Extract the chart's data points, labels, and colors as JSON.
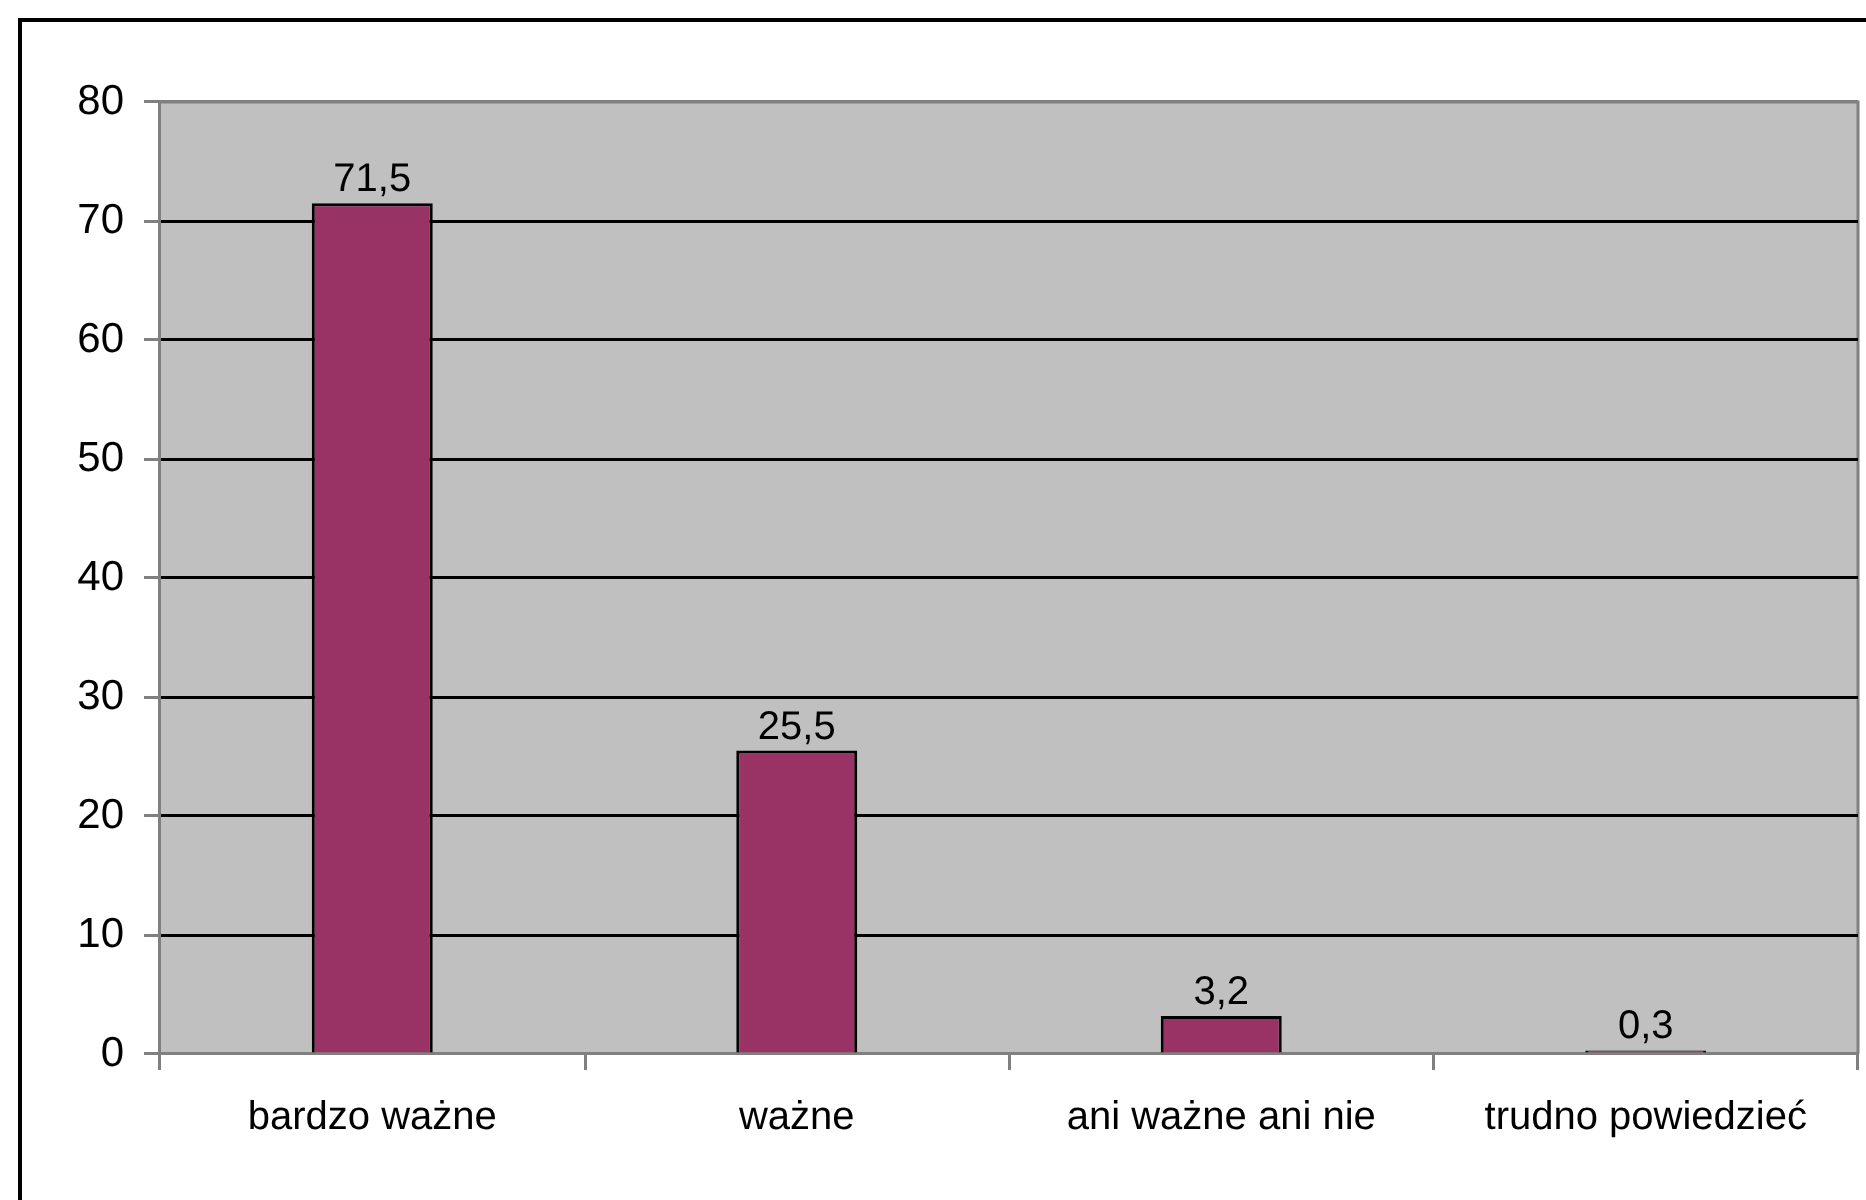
{
  "chart_data": {
    "type": "bar",
    "categories": [
      "bardzo ważne",
      "ważne",
      "ani ważne ani nie",
      "trudno powiedzieć"
    ],
    "values": [
      71.5,
      25.5,
      3.2,
      0.3
    ],
    "color": "#993366",
    "value_labels": [
      "71,5",
      "25,5",
      "3,2",
      "0,3"
    ],
    "ylim": [
      0,
      80
    ],
    "yticks": [
      0,
      10,
      20,
      30,
      40,
      50,
      60,
      70,
      80
    ],
    "grid": "y"
  }
}
